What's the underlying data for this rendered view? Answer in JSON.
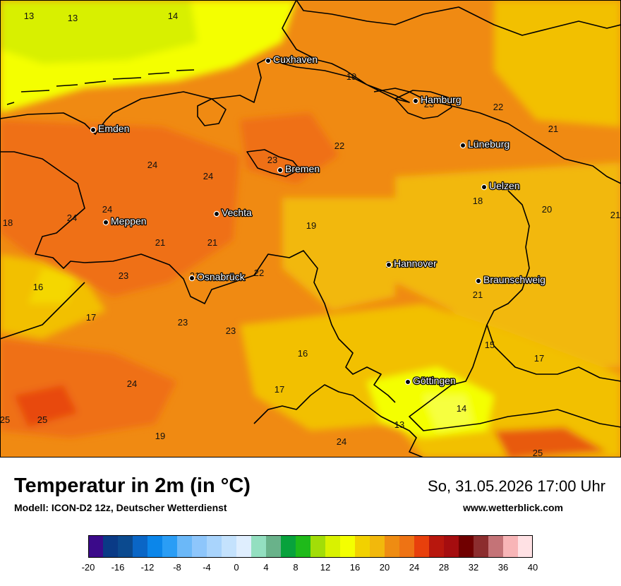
{
  "map": {
    "cities": [
      {
        "name": "Cuxhaven"
      },
      {
        "name": "Hamburg"
      },
      {
        "name": "Emden"
      },
      {
        "name": "Lüneburg"
      },
      {
        "name": "Bremen"
      },
      {
        "name": "Uelzen"
      },
      {
        "name": "Vechta"
      },
      {
        "name": "Meppen"
      },
      {
        "name": "Hannover"
      },
      {
        "name": "Osnabrück"
      },
      {
        "name": "Braunschweig"
      },
      {
        "name": "Göttingen"
      }
    ],
    "temperature_labels": [
      "13",
      "13",
      "14",
      "19",
      "23",
      "22",
      "21",
      "22",
      "23",
      "24",
      "24",
      "24",
      "24",
      "18",
      "18",
      "20",
      "21",
      "19",
      "21",
      "21",
      "22",
      "21",
      "21",
      "16",
      "23",
      "21",
      "17",
      "23",
      "23",
      "15",
      "16",
      "17",
      "17",
      "24",
      "14",
      "25",
      "25",
      "13",
      "19",
      "24",
      "25"
    ]
  },
  "footer": {
    "title": "Temperatur in 2m (in °C)",
    "subtitle": "Modell: ICON-D2 12z, Deutscher Wetterdienst",
    "datetime": "So, 31.05.2026 17:00 Uhr",
    "website": "www.wetterblick.com"
  },
  "legend": {
    "ticks": [
      "-20",
      "-16",
      "-12",
      "-8",
      "-4",
      "0",
      "4",
      "8",
      "12",
      "16",
      "20",
      "24",
      "28",
      "32",
      "36",
      "40"
    ],
    "colors": [
      "#3b0a8a",
      "#0a3a86",
      "#0b4a8f",
      "#0a66c6",
      "#0b86ea",
      "#2a9df5",
      "#6bb8f8",
      "#8ec6fb",
      "#a9d4fc",
      "#c4e2fd",
      "#dfeefe",
      "#93dfc0",
      "#69b28a",
      "#08a23c",
      "#1fba1a",
      "#a2dd08",
      "#d9f200",
      "#f4ff00",
      "#f2d100",
      "#f2b80c",
      "#ef8c12",
      "#ee7314",
      "#e8400c",
      "#b8170d",
      "#a50d0f",
      "#700000",
      "#8c2d2e",
      "#c47377",
      "#f8b5b7",
      "#ffe1e4"
    ]
  }
}
